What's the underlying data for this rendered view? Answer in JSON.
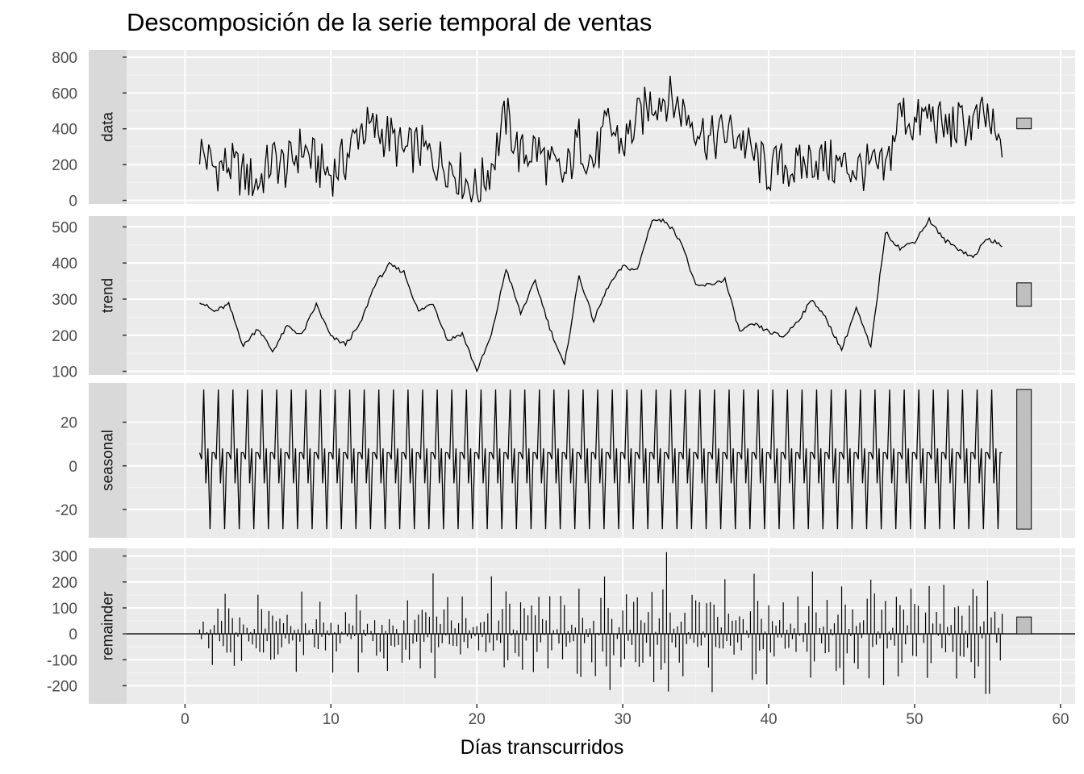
{
  "chart_data": {
    "type": "line",
    "title": "Descomposición de la serie temporal de ventas",
    "xlabel": "Días transcurridos",
    "xlim": [
      -4,
      61
    ],
    "x_ticks": [
      0,
      10,
      20,
      30,
      40,
      50,
      60
    ],
    "grid": true,
    "legend": "none",
    "x": [
      1.0,
      2.0,
      3.0,
      4.0,
      5.0,
      6.0,
      7.0,
      8.0,
      9.0,
      10.0,
      11.0,
      12.0,
      13.0,
      14.0,
      15.0,
      16.0,
      17.0,
      18.0,
      19.0,
      20.0,
      21.0,
      22.0,
      23.0,
      24.0,
      25.0,
      26.0,
      27.0,
      28.0,
      29.0,
      30.0,
      31.0,
      32.0,
      33.0,
      34.0,
      35.0,
      36.0,
      37.0,
      38.0,
      39.0,
      40.0,
      41.0,
      42.0,
      43.0,
      44.0,
      45.0,
      46.0,
      47.0,
      48.0,
      49.0,
      50.0,
      51.0,
      52.0,
      53.0,
      54.0,
      55.0,
      56.0
    ],
    "panels": [
      {
        "name": "data",
        "ylim": [
          -20,
          840
        ],
        "y_ticks": [
          0,
          200,
          400,
          600,
          800
        ],
        "range_bar": [
          400,
          460
        ],
        "values": [
          290,
          180,
          200,
          140,
          100,
          230,
          180,
          300,
          200,
          150,
          230,
          410,
          390,
          360,
          260,
          300,
          230,
          210,
          130,
          50,
          200,
          470,
          240,
          300,
          190,
          120,
          340,
          210,
          420,
          310,
          440,
          560,
          580,
          510,
          430,
          330,
          380,
          360,
          240,
          160,
          200,
          170,
          240,
          210,
          190,
          180,
          180,
          150,
          500,
          420,
          480,
          400,
          420,
          430,
          460,
          240
        ],
        "style": "line"
      },
      {
        "name": "trend",
        "ylim": [
          90,
          530
        ],
        "y_ticks": [
          100,
          200,
          300,
          400,
          500
        ],
        "range_bar": [
          280,
          345
        ],
        "values": [
          295,
          265,
          285,
          170,
          220,
          155,
          225,
          200,
          285,
          195,
          175,
          230,
          340,
          395,
          375,
          265,
          290,
          185,
          205,
          100,
          200,
          385,
          260,
          350,
          220,
          115,
          365,
          240,
          335,
          390,
          380,
          520,
          515,
          460,
          335,
          340,
          355,
          210,
          230,
          210,
          195,
          240,
          300,
          240,
          160,
          275,
          165,
          485,
          440,
          460,
          520,
          465,
          440,
          415,
          470,
          445
        ],
        "style": "line"
      },
      {
        "name": "seasonal",
        "ylim": [
          -33,
          38
        ],
        "y_ticks": [
          -20,
          0,
          20
        ],
        "range_bar": [
          -29,
          35
        ],
        "pattern": [
          6,
          3,
          35,
          -8,
          8,
          -29,
          6
        ],
        "style": "line"
      },
      {
        "name": "remainder",
        "ylim": [
          -270,
          330
        ],
        "y_ticks": [
          -200,
          -100,
          0,
          100,
          200,
          300
        ],
        "range_bar": [
          0,
          65
        ],
        "values": [
          50,
          -120,
          150,
          -80,
          180,
          -150,
          100,
          -170,
          160,
          -130,
          110,
          -210,
          150,
          -120,
          130,
          -160,
          210,
          -150,
          120,
          -110,
          160,
          -220,
          230,
          -200,
          150,
          -170,
          220,
          -140,
          250,
          -200,
          270,
          -230,
          310,
          -240,
          200,
          -210,
          180,
          -170,
          240,
          -200,
          150,
          -140,
          180,
          -130,
          250,
          -160,
          230,
          -220,
          290,
          -220,
          260,
          -250,
          280,
          -240,
          230,
          -180
        ],
        "style": "bars"
      }
    ]
  }
}
